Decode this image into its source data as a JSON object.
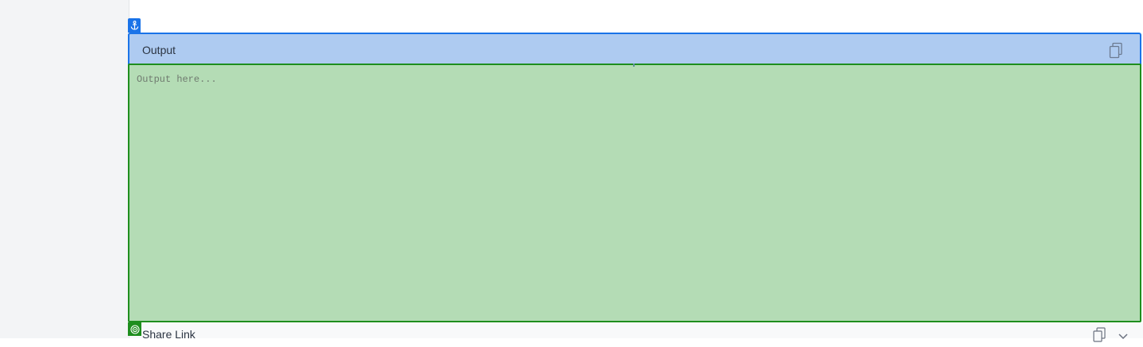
{
  "output_panel": {
    "title": "Output",
    "placeholder": "Output here...",
    "value": ""
  },
  "share_panel": {
    "title": "Share Link"
  },
  "icons": {
    "anchor": "anchor-icon",
    "copy": "copy-icon",
    "target": "target-icon",
    "chevron": "chevron-down-icon"
  },
  "colors": {
    "header_highlight": "#aecbf1",
    "header_border": "#1a73e8",
    "output_highlight": "#b4dcb5",
    "output_border": "#1e8e1e"
  }
}
